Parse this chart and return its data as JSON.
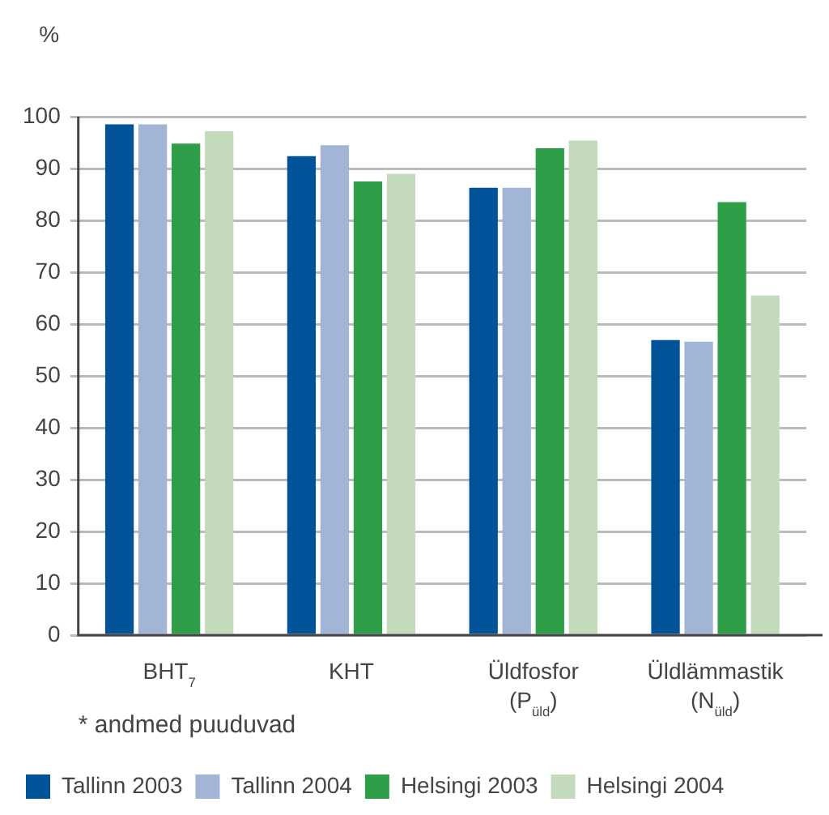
{
  "chart_data": {
    "type": "bar",
    "ylabel": "%",
    "categories": [
      "BHT$_{7}$",
      "KHT",
      "Üldfosfor\n(P$_{üld}$)",
      "Üldlämmastik\n(N$_{üld}$)"
    ],
    "series": [
      {
        "name": "Tallinn 2003",
        "color": "#005396",
        "values": [
          98.5,
          92.4,
          86.3,
          56.9
        ]
      },
      {
        "name": "Tallinn 2004",
        "color": "#a3b5d6",
        "values": [
          98.5,
          94.5,
          86.3,
          56.6
        ]
      },
      {
        "name": "Helsingi 2003",
        "color": "#2e9e48",
        "values": [
          94.8,
          87.5,
          93.9,
          83.5
        ]
      },
      {
        "name": "Helsingi 2004",
        "color": "#c3dabd",
        "values": [
          97.2,
          89.0,
          95.4,
          65.5
        ]
      }
    ],
    "ylim": [
      0,
      100
    ],
    "yticks": [
      0,
      10,
      20,
      30,
      40,
      50,
      60,
      70,
      80,
      90,
      100
    ],
    "grid": "y",
    "legend": "bottom",
    "annotations": [
      "* andmed puuduvad"
    ]
  }
}
